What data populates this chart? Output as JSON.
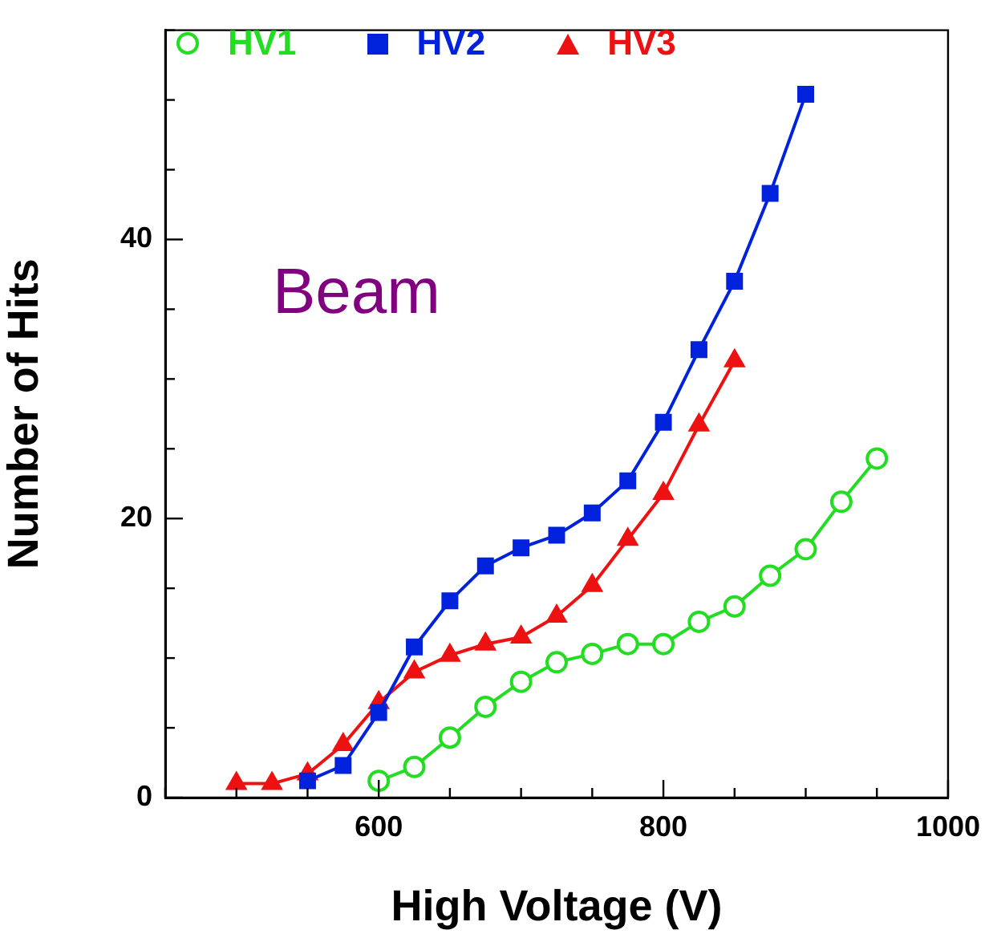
{
  "chart_data": {
    "type": "line",
    "xlabel": "High Voltage (V)",
    "ylabel": "Number of Hits",
    "annotations": [
      "Beam"
    ],
    "xlim": [
      450,
      1000
    ],
    "xticks": [
      {
        "value": 450,
        "label": null
      },
      {
        "value": 500,
        "label": null
      },
      {
        "value": 550,
        "label": null
      },
      600,
      {
        "value": 650,
        "label": null
      },
      {
        "value": 700,
        "label": null
      },
      {
        "value": 750,
        "label": null
      },
      800,
      {
        "value": 850,
        "label": null
      },
      {
        "value": 900,
        "label": null
      },
      {
        "value": 950,
        "label": null
      },
      1000
    ],
    "ylim": [
      0,
      55
    ],
    "yticks": [
      0,
      {
        "value": 5,
        "label": null
      },
      {
        "value": 10,
        "label": null
      },
      {
        "value": 15,
        "label": null
      },
      20,
      {
        "value": 25,
        "label": null
      },
      {
        "value": 30,
        "label": null
      },
      {
        "value": 35,
        "label": null
      },
      40,
      {
        "value": 45,
        "label": null
      },
      {
        "value": 50,
        "label": null
      },
      {
        "value": 55,
        "label": null
      }
    ],
    "grid": false,
    "legend": "top",
    "line_style": "solid",
    "series": [
      {
        "name": "HV1",
        "color": "#22dd22",
        "marker": "circle",
        "x": [
          600,
          625,
          650,
          675,
          700,
          725,
          750,
          775,
          800,
          825,
          850,
          875,
          900,
          925,
          950
        ],
        "values": [
          1.2,
          2.2,
          4.3,
          6.5,
          8.3,
          9.7,
          10.3,
          11.0,
          11.0,
          12.6,
          13.7,
          15.9,
          17.8,
          21.2,
          24.3
        ]
      },
      {
        "name": "HV2",
        "color": "#0022dd",
        "marker": "square",
        "x": [
          550,
          575,
          600,
          625,
          650,
          675,
          700,
          725,
          750,
          775,
          800,
          825,
          850,
          875,
          900
        ],
        "values": [
          1.2,
          2.3,
          6.1,
          10.8,
          14.1,
          16.6,
          17.9,
          18.8,
          20.4,
          22.7,
          26.9,
          32.1,
          37.0,
          43.3,
          50.4
        ]
      },
      {
        "name": "HV3",
        "color": "#ee1111",
        "marker": "triangle",
        "x": [
          500,
          525,
          550,
          575,
          600,
          625,
          650,
          675,
          700,
          725,
          750,
          775,
          800,
          825,
          850
        ],
        "values": [
          1.0,
          1.0,
          1.7,
          3.8,
          6.8,
          9.0,
          10.2,
          11.0,
          11.5,
          13.0,
          15.2,
          18.5,
          21.8,
          26.7,
          31.3
        ]
      }
    ]
  }
}
